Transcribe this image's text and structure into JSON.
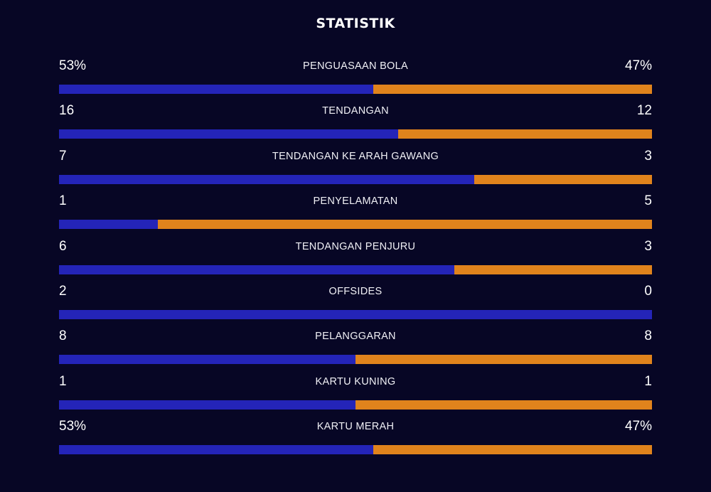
{
  "title": "STATISTIK",
  "colors": {
    "background": "#070625",
    "home": "#2424b8",
    "away": "#e0831c"
  },
  "stats": [
    {
      "label": "PENGUASAAN BOLA",
      "home": "53%",
      "away": "47%",
      "home_share": 0.53
    },
    {
      "label": "TENDANGAN",
      "home": "16",
      "away": "12",
      "home_share": 0.5714
    },
    {
      "label": "TENDANGAN KE ARAH GAWANG",
      "home": "7",
      "away": "3",
      "home_share": 0.7
    },
    {
      "label": "PENYELAMATAN",
      "home": "1",
      "away": "5",
      "home_share": 0.1667
    },
    {
      "label": "TENDANGAN PENJURU",
      "home": "6",
      "away": "3",
      "home_share": 0.6667
    },
    {
      "label": "OFFSIDES",
      "home": "2",
      "away": "0",
      "home_share": 1.0
    },
    {
      "label": "PELANGGARAN",
      "home": "8",
      "away": "8",
      "home_share": 0.5
    },
    {
      "label": "KARTU KUNING",
      "home": "1",
      "away": "1",
      "home_share": 0.5
    },
    {
      "label": "KARTU MERAH",
      "home": "53%",
      "away": "47%",
      "home_share": 0.53
    }
  ]
}
